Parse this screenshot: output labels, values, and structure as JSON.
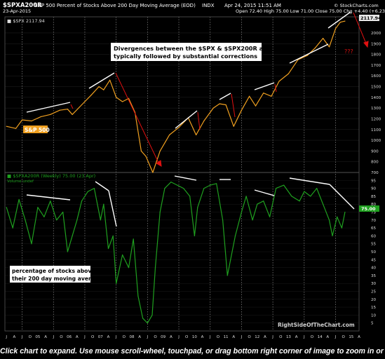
{
  "header": {
    "symbol": "$SPXA200R",
    "description": "S&P 500 Percent of Stocks Above 200 Day Moving Average (EOD)",
    "market": "INDX",
    "date_line": "23-Apr-2015",
    "quote_line": "Open 72.40   High 75.00   Low 71.00   Close 75.00   Chg +4.40 (+6.23%)▲",
    "timestamp": "Apr 24, 2015 11:51 AM",
    "credit": "© StockCharts.com"
  },
  "upper_panel": {
    "legend": "■ $SPX 2117.94",
    "last_value_label": "2117.94",
    "series_label": "S&P 500",
    "note_line1": "Divergences between the $SPX & $SPX200R are",
    "note_line2": "typically followed by substantial corrections",
    "question_marks": "???",
    "colors": {
      "price": "#f0a020",
      "trendline": "#ffffff",
      "arrow": "#e01010",
      "label_bg": "#f0a020",
      "note_bg": "#ffffff"
    }
  },
  "lower_panel": {
    "legend": "■ $SPXA200R (Weekly) 75.00 (23 Apr)",
    "volume_label": "Volume undef",
    "last_value_label": "75.00",
    "note_line1": "percentage of stocks above",
    "note_line2": "their 200 day moving average",
    "colors": {
      "series": "#1fa01f",
      "trendline": "#ffffff",
      "note_bg": "#ffffff"
    }
  },
  "watermark": "RightSideOfTheChart.com",
  "footer_text": "Click chart to expand. Use mouse scroll-wheel, touchpad, or drag bottom right corner of image to zoom in or out.",
  "chart_data": [
    {
      "type": "line",
      "title": "$SPX",
      "ylim": [
        700,
        2150
      ],
      "y_ticks": [
        700,
        800,
        900,
        1000,
        1100,
        1200,
        1300,
        1400,
        1500,
        1600,
        1700,
        1800,
        1900,
        2000
      ],
      "x_ticks": [
        "J",
        "A",
        "J",
        "O",
        "05",
        "A",
        "J",
        "O",
        "06",
        "A",
        "J",
        "O",
        "07",
        "A",
        "J",
        "O",
        "08",
        "A",
        "J",
        "O",
        "09",
        "A",
        "J",
        "O",
        "10",
        "A",
        "J",
        "O",
        "11",
        "A",
        "J",
        "O",
        "12",
        "A",
        "J",
        "O",
        "13",
        "A",
        "J",
        "O",
        "14",
        "A",
        "J",
        "O",
        "15",
        "A",
        "J",
        "O"
      ],
      "series": [
        {
          "name": "$SPX",
          "x": [
            2004.5,
            2004.8,
            2005.0,
            2005.3,
            2005.6,
            2005.9,
            2006.2,
            2006.45,
            2006.6,
            2006.9,
            2007.2,
            2007.45,
            2007.6,
            2007.8,
            2008.0,
            2008.2,
            2008.4,
            2008.6,
            2008.8,
            2008.95,
            2009.17,
            2009.4,
            2009.7,
            2010.0,
            2010.3,
            2010.55,
            2010.8,
            2011.1,
            2011.3,
            2011.5,
            2011.75,
            2012.0,
            2012.25,
            2012.45,
            2012.7,
            2012.95,
            2013.2,
            2013.5,
            2013.8,
            2014.1,
            2014.35,
            2014.6,
            2014.8,
            2015.0,
            2015.15,
            2015.3
          ],
          "values": [
            1130,
            1110,
            1190,
            1180,
            1220,
            1240,
            1280,
            1290,
            1240,
            1330,
            1420,
            1500,
            1470,
            1560,
            1400,
            1360,
            1390,
            1260,
            900,
            850,
            700,
            900,
            1050,
            1120,
            1210,
            1050,
            1180,
            1300,
            1340,
            1330,
            1130,
            1280,
            1410,
            1320,
            1440,
            1410,
            1550,
            1620,
            1750,
            1790,
            1860,
            1950,
            1870,
            2040,
            2100,
            2110
          ]
        }
      ]
    },
    {
      "type": "line",
      "title": "$SPXA200R (Weekly)",
      "ylim": [
        0,
        100
      ],
      "y_ticks": [
        5,
        10,
        15,
        20,
        25,
        30,
        35,
        40,
        45,
        50,
        55,
        60,
        65,
        70,
        75,
        80,
        85,
        90,
        95
      ],
      "series": [
        {
          "name": "$SPXA200R (Weekly)",
          "x": [
            2004.5,
            2004.7,
            2004.9,
            2005.1,
            2005.3,
            2005.5,
            2005.7,
            2005.9,
            2006.1,
            2006.3,
            2006.45,
            2006.6,
            2006.75,
            2006.9,
            2007.1,
            2007.3,
            2007.5,
            2007.6,
            2007.75,
            2007.9,
            2008.0,
            2008.2,
            2008.4,
            2008.55,
            2008.7,
            2008.85,
            2009.0,
            2009.15,
            2009.25,
            2009.4,
            2009.55,
            2009.75,
            2009.95,
            2010.15,
            2010.35,
            2010.5,
            2010.6,
            2010.8,
            2011.0,
            2011.2,
            2011.4,
            2011.55,
            2011.65,
            2011.8,
            2012.0,
            2012.15,
            2012.35,
            2012.5,
            2012.7,
            2012.9,
            2013.1,
            2013.35,
            2013.6,
            2013.85,
            2014.0,
            2014.2,
            2014.4,
            2014.6,
            2014.8,
            2014.9,
            2015.05,
            2015.2,
            2015.3
          ],
          "values": [
            78,
            65,
            83,
            70,
            55,
            78,
            72,
            82,
            70,
            75,
            50,
            60,
            70,
            82,
            88,
            90,
            70,
            80,
            52,
            60,
            30,
            48,
            40,
            58,
            22,
            8,
            5,
            10,
            40,
            75,
            90,
            94,
            92,
            90,
            85,
            60,
            78,
            90,
            92,
            93,
            70,
            35,
            45,
            60,
            75,
            85,
            70,
            80,
            82,
            72,
            90,
            92,
            85,
            82,
            88,
            85,
            90,
            80,
            70,
            60,
            72,
            65,
            75
          ]
        }
      ]
    }
  ]
}
